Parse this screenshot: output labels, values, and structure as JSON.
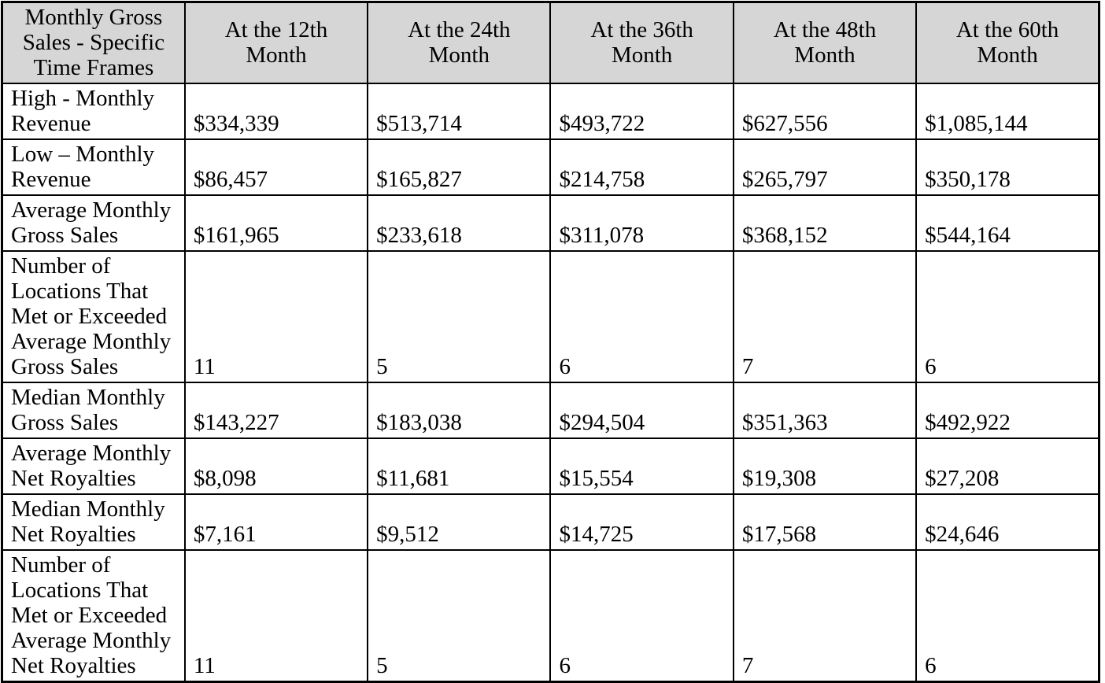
{
  "table": {
    "title": "Monthly Gross Sales - Specific Time Frames",
    "colors": {
      "header_bg": "#d6d6d6",
      "border": "#000000",
      "text": "#000000",
      "page_bg": "#ffffff"
    },
    "header_cells": [
      {
        "lines": [
          "Monthly Gross",
          "Sales - Specific",
          "Time Frames"
        ]
      },
      {
        "lines": [
          "At the 12th",
          "Month"
        ]
      },
      {
        "lines": [
          "At the 24th",
          "Month"
        ]
      },
      {
        "lines": [
          "At the 36th",
          "Month"
        ]
      },
      {
        "lines": [
          "At the 48th",
          "Month"
        ]
      },
      {
        "lines": [
          "At the 60th",
          "Month"
        ]
      }
    ],
    "rows": [
      {
        "size": "normal",
        "label_lines": [
          "High - Monthly",
          "Revenue"
        ],
        "values": [
          "$334,339",
          "$513,714",
          "$493,722",
          "$627,556",
          "$1,085,144"
        ]
      },
      {
        "size": "normal",
        "label_lines": [
          "Low – Monthly",
          "Revenue"
        ],
        "values": [
          "$86,457",
          "$165,827",
          "$214,758",
          "$265,797",
          "$350,178"
        ]
      },
      {
        "size": "normal",
        "label_lines": [
          "Average Monthly",
          "Gross Sales"
        ],
        "values": [
          "$161,965",
          "$233,618",
          "$311,078",
          "$368,152",
          "$544,164"
        ]
      },
      {
        "size": "tall",
        "label_lines": [
          "Number of",
          "Locations That",
          "Met or Exceeded",
          "Average Monthly",
          "Gross Sales"
        ],
        "values": [
          "11",
          "5",
          "6",
          "7",
          "6"
        ]
      },
      {
        "size": "normal",
        "label_lines": [
          "Median Monthly",
          "Gross Sales"
        ],
        "values": [
          "$143,227",
          "$183,038",
          "$294,504",
          "$351,363",
          "$492,922"
        ]
      },
      {
        "size": "normal",
        "label_lines": [
          "Average Monthly",
          "Net Royalties"
        ],
        "values": [
          "$8,098",
          "$11,681",
          "$15,554",
          "$19,308",
          "$27,208"
        ]
      },
      {
        "size": "normal",
        "label_lines": [
          "Median Monthly",
          "Net Royalties"
        ],
        "values": [
          "$7,161",
          "$9,512",
          "$14,725",
          "$17,568",
          "$24,646"
        ]
      },
      {
        "size": "tall",
        "label_lines": [
          "Number of",
          "Locations That",
          "Met or Exceeded",
          "Average Monthly",
          "Net Royalties"
        ],
        "values": [
          "11",
          "5",
          "6",
          "7",
          "6"
        ]
      }
    ]
  }
}
